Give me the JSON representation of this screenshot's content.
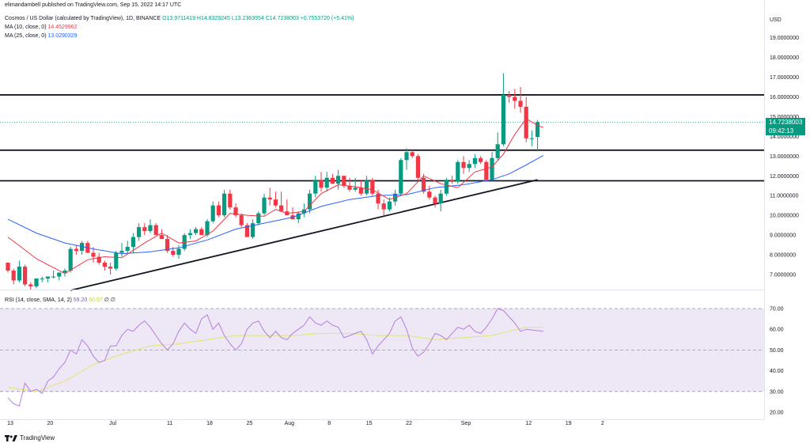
{
  "header": {
    "publisher": "elimandambell published on TradingView.com, Sep 15, 2022 14:17 UTC",
    "symbol": "Cosmos / US Dollar (calculated by TradingView), 1D, BINANCE",
    "ohlc": "O13.9711419 H14.8329245 L13.2363954 C14.7238003 +0.7553720 (+5.41%)",
    "ma10_label": "MA (10, close, 0)",
    "ma10_value": "14.4529962",
    "ma25_label": "MA (25, close, 0)",
    "ma25_value": "13.0290329",
    "rsi_label": "RSI (14, close, SMA, 14, 2)",
    "rsi_value": "59.20",
    "rsi_sma_value": "60.97",
    "rsi_extra1": "∅",
    "rsi_extra2": "∅"
  },
  "price_badge": {
    "price": "14.7238003",
    "countdown": "09:42:13"
  },
  "footer": {
    "brand": "TradingView"
  },
  "colors": {
    "up": "#089981",
    "down": "#f23645",
    "ma10": "#f23645",
    "ma25": "#2962ff",
    "rsi": "#b47ede",
    "rsi_sma": "#e3e66d",
    "rsi_band": "#ede7f6"
  },
  "chart_data": {
    "type": "candlestick",
    "title": "Cosmos / US Dollar, 1D, BINANCE",
    "currency": "USD",
    "y_ticks": [
      "7.0000000",
      "8.0000000",
      "9.0000000",
      "10.0000000",
      "11.0000000",
      "12.0000000",
      "13.0000000",
      "14.0000000",
      "15.0000000",
      "16.0000000",
      "17.0000000",
      "18.0000000",
      "19.0000000"
    ],
    "ylim": [
      6.1,
      19.8
    ],
    "x_ticks": [
      {
        "label": "13",
        "day": 0
      },
      {
        "label": "20",
        "day": 7
      },
      {
        "label": "Jul",
        "day": 18
      },
      {
        "label": "11",
        "day": 28
      },
      {
        "label": "18",
        "day": 35
      },
      {
        "label": "25",
        "day": 42
      },
      {
        "label": "Aug",
        "day": 49
      },
      {
        "label": "8",
        "day": 56
      },
      {
        "label": "15",
        "day": 63
      },
      {
        "label": "22",
        "day": 70
      },
      {
        "label": "Sep",
        "day": 80
      },
      {
        "label": "12",
        "day": 91
      },
      {
        "label": "19",
        "day": 98
      },
      {
        "label": "2",
        "day": 104
      }
    ],
    "candles": [
      [
        7.6,
        7.6,
        7.1,
        7.2
      ],
      [
        7.2,
        7.3,
        6.5,
        6.7
      ],
      [
        6.7,
        7.7,
        6.6,
        7.4
      ],
      [
        7.4,
        7.5,
        6.4,
        6.5
      ],
      [
        6.5,
        6.6,
        6.2,
        6.4
      ],
      [
        6.4,
        6.8,
        6.3,
        6.8
      ],
      [
        6.8,
        6.9,
        6.6,
        6.8
      ],
      [
        6.8,
        6.9,
        6.6,
        6.9
      ],
      [
        6.9,
        7.2,
        6.8,
        6.9
      ],
      [
        6.9,
        7.0,
        6.7,
        7.1
      ],
      [
        7.1,
        7.3,
        6.9,
        7.2
      ],
      [
        7.2,
        8.4,
        7.1,
        8.3
      ],
      [
        8.3,
        8.5,
        8.0,
        8.2
      ],
      [
        8.2,
        8.7,
        8.0,
        8.6
      ],
      [
        8.6,
        8.7,
        8.2,
        8.1
      ],
      [
        8.1,
        8.4,
        7.6,
        7.9
      ],
      [
        7.9,
        8.1,
        7.5,
        7.6
      ],
      [
        7.6,
        7.7,
        7.2,
        7.4
      ],
      [
        7.4,
        7.6,
        7.0,
        7.3
      ],
      [
        7.3,
        8.2,
        7.2,
        8.1
      ],
      [
        8.1,
        8.6,
        7.9,
        8.2
      ],
      [
        8.2,
        8.7,
        8.0,
        8.4
      ],
      [
        8.4,
        9.1,
        8.1,
        8.9
      ],
      [
        8.9,
        9.6,
        8.7,
        9.4
      ],
      [
        9.4,
        9.6,
        9.0,
        9.2
      ],
      [
        9.2,
        9.8,
        9.1,
        9.5
      ],
      [
        9.5,
        9.6,
        9.0,
        9.0
      ],
      [
        9.0,
        9.3,
        8.8,
        8.8
      ],
      [
        8.8,
        9.0,
        8.1,
        8.2
      ],
      [
        8.2,
        8.4,
        7.9,
        8.0
      ],
      [
        8.0,
        8.5,
        7.8,
        8.3
      ],
      [
        8.3,
        9.1,
        8.2,
        9.0
      ],
      [
        9.0,
        9.3,
        8.8,
        9.1
      ],
      [
        9.1,
        9.4,
        9.0,
        9.3
      ],
      [
        9.3,
        9.4,
        9.0,
        9.0
      ],
      [
        9.0,
        9.8,
        8.9,
        9.7
      ],
      [
        9.7,
        10.7,
        9.6,
        10.5
      ],
      [
        10.5,
        10.7,
        9.9,
        10.0
      ],
      [
        10.0,
        11.3,
        9.9,
        11.1
      ],
      [
        11.1,
        11.3,
        10.3,
        10.4
      ],
      [
        10.4,
        10.6,
        9.9,
        10.0
      ],
      [
        10.0,
        10.1,
        9.4,
        9.5
      ],
      [
        9.5,
        9.6,
        8.9,
        8.9
      ],
      [
        8.9,
        9.8,
        8.8,
        9.6
      ],
      [
        9.6,
        10.2,
        9.5,
        10.1
      ],
      [
        10.1,
        11.1,
        10.0,
        10.9
      ],
      [
        10.9,
        11.4,
        10.5,
        10.8
      ],
      [
        10.8,
        11.2,
        10.4,
        10.5
      ],
      [
        10.5,
        11.2,
        10.2,
        10.2
      ],
      [
        10.2,
        10.8,
        10.0,
        10.0
      ],
      [
        10.0,
        10.4,
        9.8,
        9.8
      ],
      [
        9.8,
        10.2,
        9.6,
        10.1
      ],
      [
        10.1,
        10.6,
        9.9,
        10.3
      ],
      [
        10.3,
        11.3,
        10.1,
        11.1
      ],
      [
        11.1,
        12.0,
        10.9,
        11.8
      ],
      [
        11.8,
        12.2,
        11.2,
        11.4
      ],
      [
        11.4,
        12.2,
        11.2,
        11.9
      ],
      [
        11.9,
        12.1,
        11.6,
        11.6
      ],
      [
        11.6,
        12.3,
        11.3,
        12.0
      ],
      [
        12.0,
        12.0,
        11.4,
        11.5
      ],
      [
        11.5,
        11.9,
        11.2,
        11.3
      ],
      [
        11.3,
        11.9,
        11.2,
        11.4
      ],
      [
        11.4,
        11.8,
        11.0,
        11.1
      ],
      [
        11.1,
        12.0,
        11.0,
        11.8
      ],
      [
        11.8,
        11.9,
        11.0,
        11.1
      ],
      [
        11.1,
        11.3,
        10.3,
        10.6
      ],
      [
        10.6,
        10.8,
        10.0,
        10.3
      ],
      [
        10.3,
        10.9,
        10.2,
        10.7
      ],
      [
        10.7,
        11.3,
        10.5,
        11.1
      ],
      [
        11.1,
        12.9,
        11.0,
        12.8
      ],
      [
        12.8,
        13.4,
        12.3,
        13.2
      ],
      [
        13.2,
        13.3,
        12.9,
        13.0
      ],
      [
        13.0,
        13.1,
        11.8,
        11.9
      ],
      [
        11.9,
        12.1,
        11.1,
        11.2
      ],
      [
        11.2,
        11.5,
        10.8,
        10.9
      ],
      [
        10.9,
        11.0,
        10.4,
        10.6
      ],
      [
        10.6,
        11.3,
        10.2,
        11.1
      ],
      [
        11.1,
        11.9,
        11.0,
        11.8
      ],
      [
        11.8,
        12.0,
        11.6,
        11.7
      ],
      [
        11.7,
        12.8,
        11.6,
        12.7
      ],
      [
        12.7,
        13.0,
        12.1,
        12.4
      ],
      [
        12.4,
        12.8,
        12.2,
        12.6
      ],
      [
        12.6,
        13.1,
        12.4,
        12.9
      ],
      [
        12.9,
        13.0,
        12.6,
        12.7
      ],
      [
        12.7,
        12.8,
        11.7,
        11.8
      ],
      [
        11.8,
        13.2,
        11.7,
        12.9
      ],
      [
        12.9,
        14.2,
        12.8,
        13.6
      ],
      [
        13.6,
        17.2,
        13.5,
        16.1
      ],
      [
        16.1,
        16.3,
        15.7,
        16.0
      ],
      [
        16.0,
        16.4,
        15.4,
        15.8
      ],
      [
        15.8,
        16.5,
        15.2,
        15.5
      ],
      [
        15.5,
        16.0,
        13.7,
        13.9
      ],
      [
        13.9,
        14.3,
        13.5,
        13.9
      ],
      [
        13.97,
        14.83,
        13.24,
        14.72
      ]
    ],
    "ma10": [
      [
        0,
        8.9
      ],
      [
        5,
        7.8
      ],
      [
        10,
        7.05
      ],
      [
        14,
        7.75
      ],
      [
        17,
        7.9
      ],
      [
        20,
        7.85
      ],
      [
        24,
        8.6
      ],
      [
        27,
        9.1
      ],
      [
        30,
        8.6
      ],
      [
        33,
        8.7
      ],
      [
        36,
        9.2
      ],
      [
        39,
        10.1
      ],
      [
        42,
        10.0
      ],
      [
        45,
        9.95
      ],
      [
        47,
        10.3
      ],
      [
        49,
        10.1
      ],
      [
        52,
        10.2
      ],
      [
        55,
        11.1
      ],
      [
        58,
        11.55
      ],
      [
        61,
        11.45
      ],
      [
        64,
        11.3
      ],
      [
        67,
        10.8
      ],
      [
        70,
        11.1
      ],
      [
        73,
        12.0
      ],
      [
        76,
        11.6
      ],
      [
        79,
        11.4
      ],
      [
        82,
        12.2
      ],
      [
        85,
        12.45
      ],
      [
        87,
        13.1
      ],
      [
        89,
        14.1
      ],
      [
        91,
        14.9
      ],
      [
        93,
        14.55
      ],
      [
        94,
        14.45
      ]
    ],
    "ma25": [
      [
        0,
        9.8
      ],
      [
        5,
        9.1
      ],
      [
        10,
        8.6
      ],
      [
        15,
        8.3
      ],
      [
        20,
        8.05
      ],
      [
        25,
        8.15
      ],
      [
        30,
        8.35
      ],
      [
        35,
        8.75
      ],
      [
        40,
        9.3
      ],
      [
        45,
        9.6
      ],
      [
        50,
        9.9
      ],
      [
        55,
        10.45
      ],
      [
        60,
        10.8
      ],
      [
        65,
        11.0
      ],
      [
        70,
        11.05
      ],
      [
        75,
        11.4
      ],
      [
        80,
        11.55
      ],
      [
        85,
        11.8
      ],
      [
        88,
        12.1
      ],
      [
        91,
        12.55
      ],
      [
        94,
        13.03
      ]
    ],
    "levels": [
      16.1,
      13.3,
      11.75
    ],
    "trendline": [
      [
        11,
        6.2
      ],
      [
        93,
        11.8
      ]
    ],
    "last_close": 14.72,
    "rsi": {
      "ticks": [
        "70.00",
        "60.00",
        "50.00",
        "40.00",
        "30.00",
        "20.00"
      ],
      "ylim": [
        17,
        74
      ],
      "band": [
        30,
        70
      ],
      "values": [
        [
          0,
          27
        ],
        [
          1,
          24
        ],
        [
          2,
          23
        ],
        [
          3,
          34
        ],
        [
          4,
          30
        ],
        [
          5,
          31
        ],
        [
          6,
          29
        ],
        [
          7,
          35
        ],
        [
          8,
          37
        ],
        [
          9,
          41
        ],
        [
          10,
          44
        ],
        [
          11,
          50
        ],
        [
          12,
          48
        ],
        [
          13,
          55
        ],
        [
          14,
          52
        ],
        [
          15,
          47
        ],
        [
          16,
          44
        ],
        [
          17,
          45
        ],
        [
          18,
          52
        ],
        [
          19,
          52
        ],
        [
          20,
          57
        ],
        [
          21,
          60
        ],
        [
          22,
          59
        ],
        [
          23,
          62
        ],
        [
          24,
          64
        ],
        [
          25,
          61
        ],
        [
          26,
          57
        ],
        [
          27,
          53
        ],
        [
          28,
          50
        ],
        [
          29,
          53
        ],
        [
          30,
          59
        ],
        [
          31,
          63
        ],
        [
          32,
          60
        ],
        [
          33,
          58
        ],
        [
          34,
          65
        ],
        [
          35,
          67
        ],
        [
          36,
          60
        ],
        [
          37,
          63
        ],
        [
          38,
          57
        ],
        [
          39,
          53
        ],
        [
          40,
          50
        ],
        [
          41,
          53
        ],
        [
          42,
          60
        ],
        [
          43,
          63
        ],
        [
          44,
          64
        ],
        [
          45,
          59
        ],
        [
          46,
          56
        ],
        [
          47,
          59
        ],
        [
          48,
          56
        ],
        [
          49,
          55
        ],
        [
          50,
          58
        ],
        [
          51,
          60
        ],
        [
          52,
          62
        ],
        [
          53,
          66
        ],
        [
          54,
          63
        ],
        [
          55,
          62
        ],
        [
          56,
          64
        ],
        [
          57,
          62
        ],
        [
          58,
          61
        ],
        [
          59,
          56
        ],
        [
          60,
          57
        ],
        [
          61,
          58
        ],
        [
          62,
          59
        ],
        [
          63,
          55
        ],
        [
          64,
          48
        ],
        [
          65,
          52
        ],
        [
          66,
          55
        ],
        [
          67,
          58
        ],
        [
          68,
          64
        ],
        [
          69,
          66
        ],
        [
          70,
          60
        ],
        [
          71,
          51
        ],
        [
          72,
          47
        ],
        [
          73,
          49
        ],
        [
          74,
          53
        ],
        [
          75,
          58
        ],
        [
          76,
          57
        ],
        [
          77,
          55
        ],
        [
          78,
          58
        ],
        [
          79,
          61
        ],
        [
          80,
          60
        ],
        [
          81,
          62
        ],
        [
          82,
          59
        ],
        [
          83,
          58
        ],
        [
          84,
          61
        ],
        [
          85,
          65
        ],
        [
          86,
          70
        ],
        [
          87,
          69
        ],
        [
          88,
          66
        ],
        [
          89,
          63
        ],
        [
          90,
          59
        ],
        [
          91,
          60
        ],
        [
          94,
          59
        ]
      ],
      "sma": [
        [
          0,
          32
        ],
        [
          5,
          30
        ],
        [
          10,
          35
        ],
        [
          15,
          43
        ],
        [
          20,
          48
        ],
        [
          25,
          52
        ],
        [
          30,
          53
        ],
        [
          35,
          55
        ],
        [
          40,
          57
        ],
        [
          45,
          57
        ],
        [
          50,
          57
        ],
        [
          55,
          58
        ],
        [
          60,
          58
        ],
        [
          65,
          57
        ],
        [
          70,
          57
        ],
        [
          75,
          55
        ],
        [
          80,
          56
        ],
        [
          85,
          57
        ],
        [
          88,
          59
        ],
        [
          91,
          61
        ],
        [
          94,
          61
        ]
      ]
    }
  }
}
